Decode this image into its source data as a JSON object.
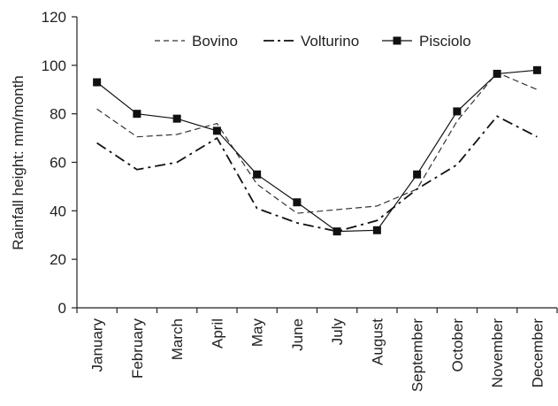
{
  "chart_data": {
    "type": "line",
    "title": "",
    "ylabel": "Rainfall height: mm/month",
    "xlabel": "",
    "ylim": [
      0,
      120
    ],
    "yticks": [
      0,
      20,
      40,
      60,
      80,
      100,
      120
    ],
    "categories": [
      "January",
      "February",
      "March",
      "April",
      "May",
      "June",
      "July",
      "August",
      "September",
      "October",
      "November",
      "December"
    ],
    "grid": false,
    "legend_position": "top",
    "series": [
      {
        "name": "Bovino",
        "line_style": "dashed",
        "marker": "none",
        "color": "#333333",
        "values": [
          82,
          70.5,
          71.5,
          76,
          51,
          39,
          40.5,
          42,
          49,
          77,
          97,
          90
        ]
      },
      {
        "name": "Volturino",
        "line_style": "dash-dot",
        "marker": "none",
        "color": "#111111",
        "values": [
          68,
          57,
          60,
          70,
          41,
          35,
          31.5,
          36,
          49,
          59,
          79,
          70.5
        ]
      },
      {
        "name": "Pisciolo",
        "line_style": "solid",
        "marker": "square",
        "color": "#111111",
        "values": [
          93,
          80,
          78,
          73,
          55,
          43.5,
          31.5,
          32,
          55,
          81,
          96.5,
          98
        ]
      }
    ]
  }
}
